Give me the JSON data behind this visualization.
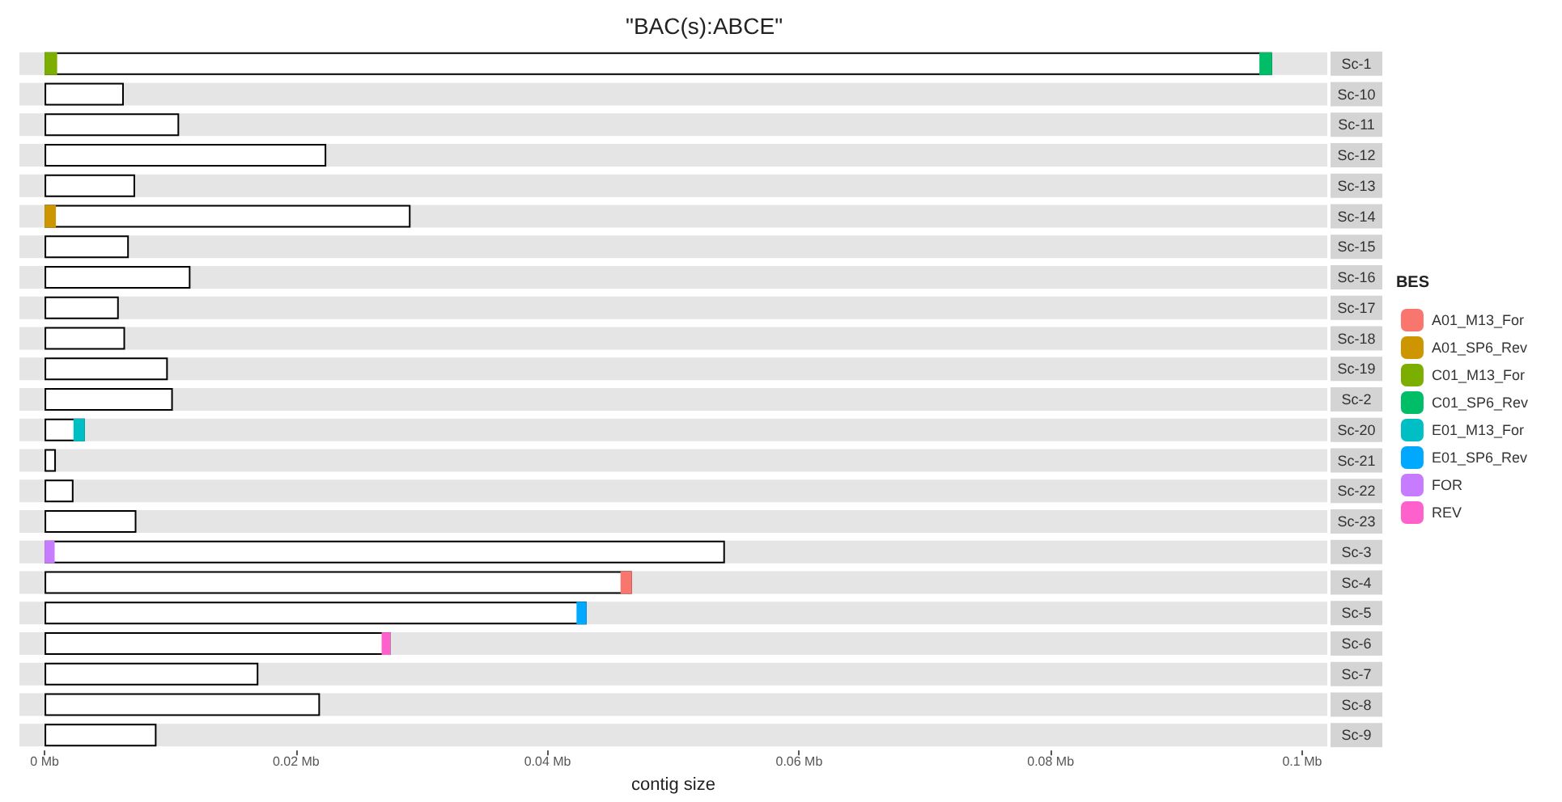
{
  "chart_data": {
    "type": "bar",
    "orientation": "horizontal",
    "title": "\"BAC(s):ABCE\"",
    "xlabel": "contig size",
    "legend_title": "BES",
    "legend": "right",
    "grid": false,
    "categories": [
      "Sc-1",
      "Sc-10",
      "Sc-11",
      "Sc-12",
      "Sc-13",
      "Sc-14",
      "Sc-15",
      "Sc-16",
      "Sc-17",
      "Sc-18",
      "Sc-19",
      "Sc-2",
      "Sc-20",
      "Sc-21",
      "Sc-22",
      "Sc-23",
      "Sc-3",
      "Sc-4",
      "Sc-5",
      "Sc-6",
      "Sc-7",
      "Sc-8",
      "Sc-9"
    ],
    "xlim": [
      -0.002,
      0.102
    ],
    "xticks": [
      {
        "value": 0,
        "label": "0 Mb"
      },
      {
        "value": 0.02,
        "label": "0.02 Mb"
      },
      {
        "value": 0.04,
        "label": "0.04 Mb"
      },
      {
        "value": 0.06,
        "label": "0.06 Mb"
      },
      {
        "value": 0.08,
        "label": "0.08 Mb"
      },
      {
        "value": 0.1,
        "label": "0.1 Mb"
      }
    ],
    "series": [
      {
        "type": "bar",
        "color": "#ffffff",
        "values": [
          0.0976,
          0.0063,
          0.0107,
          0.0224,
          0.0072,
          0.0291,
          0.0067,
          0.0116,
          0.0059,
          0.0064,
          0.0098,
          0.0102,
          0.0032,
          0.0009,
          0.0023,
          0.0073,
          0.0541,
          0.0467,
          0.0431,
          0.0275,
          0.017,
          0.0219,
          0.0089
        ]
      },
      {
        "name": "A01_M13_For",
        "color": "#f8766d",
        "base": [
          null,
          null,
          null,
          null,
          null,
          null,
          null,
          null,
          null,
          null,
          null,
          null,
          null,
          null,
          null,
          null,
          null,
          0.0458,
          null,
          null,
          null,
          null,
          null
        ],
        "values": [
          null,
          null,
          null,
          null,
          null,
          null,
          null,
          null,
          null,
          null,
          null,
          null,
          null,
          null,
          null,
          null,
          null,
          0.0009,
          null,
          null,
          null,
          null,
          null
        ]
      },
      {
        "name": "A01_SP6_Rev",
        "color": "#cd9600",
        "base": [
          null,
          null,
          null,
          null,
          null,
          0,
          null,
          null,
          null,
          null,
          null,
          null,
          null,
          null,
          null,
          null,
          null,
          null,
          null,
          null,
          null,
          null,
          null
        ],
        "values": [
          null,
          null,
          null,
          null,
          null,
          0.0009,
          null,
          null,
          null,
          null,
          null,
          null,
          null,
          null,
          null,
          null,
          null,
          null,
          null,
          null,
          null,
          null,
          null
        ]
      },
      {
        "name": "C01_M13_For",
        "color": "#7cae00",
        "base": [
          0,
          null,
          null,
          null,
          null,
          null,
          null,
          null,
          null,
          null,
          null,
          null,
          null,
          null,
          null,
          null,
          null,
          null,
          null,
          null,
          null,
          null,
          null
        ],
        "values": [
          0.001,
          null,
          null,
          null,
          null,
          null,
          null,
          null,
          null,
          null,
          null,
          null,
          null,
          null,
          null,
          null,
          null,
          null,
          null,
          null,
          null,
          null,
          null
        ]
      },
      {
        "name": "C01_SP6_Rev",
        "color": "#00be67",
        "base": [
          0.0966,
          null,
          null,
          null,
          null,
          null,
          null,
          null,
          null,
          null,
          null,
          null,
          null,
          null,
          null,
          null,
          null,
          null,
          null,
          null,
          null,
          null,
          null
        ],
        "values": [
          0.001,
          null,
          null,
          null,
          null,
          null,
          null,
          null,
          null,
          null,
          null,
          null,
          null,
          null,
          null,
          null,
          null,
          null,
          null,
          null,
          null,
          null,
          null
        ]
      },
      {
        "name": "E01_M13_For",
        "color": "#00bfc4",
        "base": [
          null,
          null,
          null,
          null,
          null,
          null,
          null,
          null,
          null,
          null,
          null,
          null,
          0.0023,
          null,
          null,
          null,
          null,
          null,
          null,
          null,
          null,
          null,
          null
        ],
        "values": [
          null,
          null,
          null,
          null,
          null,
          null,
          null,
          null,
          null,
          null,
          null,
          null,
          0.0009,
          null,
          null,
          null,
          null,
          null,
          null,
          null,
          null,
          null,
          null
        ]
      },
      {
        "name": "E01_SP6_Rev",
        "color": "#00a9ff",
        "base": [
          null,
          null,
          null,
          null,
          null,
          null,
          null,
          null,
          null,
          null,
          null,
          null,
          null,
          null,
          null,
          null,
          null,
          null,
          0.0423,
          null,
          null,
          null,
          null
        ],
        "values": [
          null,
          null,
          null,
          null,
          null,
          null,
          null,
          null,
          null,
          null,
          null,
          null,
          null,
          null,
          null,
          null,
          null,
          null,
          0.0008,
          null,
          null,
          null,
          null
        ]
      },
      {
        "name": "FOR",
        "color": "#c77cff",
        "base": [
          null,
          null,
          null,
          null,
          null,
          null,
          null,
          null,
          null,
          null,
          null,
          null,
          null,
          null,
          null,
          null,
          0,
          null,
          null,
          null,
          null,
          null,
          null
        ],
        "values": [
          null,
          null,
          null,
          null,
          null,
          null,
          null,
          null,
          null,
          null,
          null,
          null,
          null,
          null,
          null,
          null,
          0.0008,
          null,
          null,
          null,
          null,
          null,
          null
        ]
      },
      {
        "name": "REV",
        "color": "#ff61cc",
        "base": [
          null,
          null,
          null,
          null,
          null,
          null,
          null,
          null,
          null,
          null,
          null,
          null,
          null,
          null,
          null,
          null,
          null,
          null,
          null,
          0.0268,
          null,
          null,
          null
        ],
        "values": [
          null,
          null,
          null,
          null,
          null,
          null,
          null,
          null,
          null,
          null,
          null,
          null,
          null,
          null,
          null,
          null,
          null,
          null,
          null,
          0.0007,
          null,
          null,
          null
        ]
      }
    ]
  }
}
